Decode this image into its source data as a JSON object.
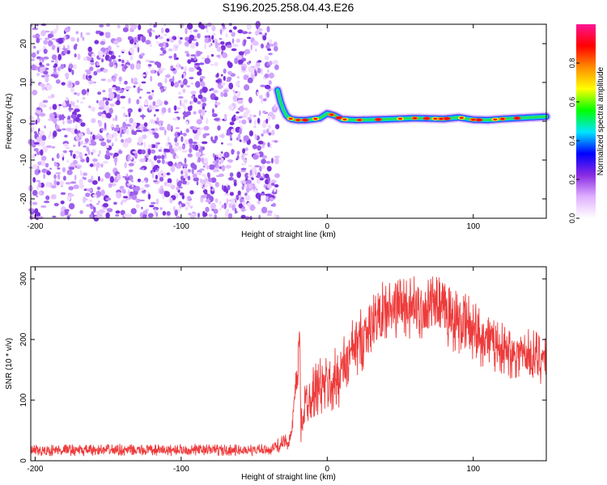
{
  "figure_title": "S196.2025.258.04.43.E26",
  "chart_data": [
    {
      "type": "heatmap",
      "title": "S196.2025.258.04.43.E26",
      "xlabel": "Height of straight line (km)",
      "ylabel": "Frequency (Hz)",
      "xlim": [
        -203,
        150
      ],
      "ylim": [
        -25,
        25
      ],
      "x_ticks": [
        -200,
        -100,
        0,
        100
      ],
      "y_ticks": [
        -20,
        -10,
        0,
        10,
        20
      ],
      "grid": false,
      "colorbar": {
        "label": "Normalized spectral amplitude",
        "range": [
          0,
          1
        ],
        "ticks": [
          "0.0",
          "0.2",
          "0.4",
          "0.6",
          "0.8"
        ],
        "colormap": [
          "#ffffff",
          "#e0b0ff",
          "#8a2be2",
          "#0000ff",
          "#00e5ff",
          "#00ff00",
          "#ffff00",
          "#ff8c00",
          "#ff0000",
          "#ff1493"
        ]
      },
      "regions": [
        {
          "description_x_range_km": [
            -203,
            -34
          ],
          "frequency_range_hz": [
            -25,
            25
          ],
          "amplitude_range": [
            0.0,
            0.2
          ]
        },
        {
          "description_x_range_km": [
            -34,
            150
          ],
          "center_frequency_hz": 0.5,
          "amplitude_range": [
            0.3,
            1.0
          ]
        }
      ],
      "ridge": {
        "x": [
          -34,
          -32,
          -30,
          -28,
          -26,
          -24,
          -20,
          -15,
          -10,
          -5,
          0,
          5,
          10,
          20,
          40,
          60,
          80,
          90,
          100,
          110,
          120,
          140,
          150
        ],
        "y": [
          8,
          5,
          3,
          1.5,
          0.8,
          0.5,
          0.3,
          0.3,
          0.5,
          0.8,
          2,
          1.5,
          0.5,
          0.3,
          0.5,
          0.8,
          0.6,
          1.0,
          0.4,
          0.3,
          0.6,
          1.0,
          1.2
        ]
      }
    },
    {
      "type": "line",
      "xlabel": "Height of straight line (km)",
      "ylabel": "SNR (10 * v/v)",
      "xlim": [
        -203,
        150
      ],
      "ylim": [
        0,
        320
      ],
      "x_ticks": [
        -200,
        -100,
        0,
        100
      ],
      "y_ticks": [
        0,
        100,
        200,
        300
      ],
      "grid": false,
      "color": "#ee3b3b",
      "series": [
        {
          "x": [
            -203,
            -180,
            -160,
            -140,
            -120,
            -100,
            -80,
            -60,
            -40,
            -25,
            -20,
            -19,
            -18,
            -16,
            -14,
            -12,
            -10,
            -5,
            0,
            5,
            10,
            15,
            20,
            25,
            30,
            35,
            40,
            45,
            50,
            55,
            60,
            65,
            70,
            75,
            80,
            85,
            90,
            95,
            100,
            105,
            110,
            115,
            120,
            125,
            130,
            135,
            140,
            145,
            150
          ],
          "y": [
            16,
            18,
            17,
            18,
            17,
            18,
            18,
            17,
            18,
            35,
            150,
            225,
            60,
            80,
            100,
            110,
            115,
            120,
            125,
            130,
            150,
            170,
            190,
            205,
            220,
            235,
            245,
            250,
            255,
            255,
            250,
            250,
            255,
            250,
            245,
            235,
            230,
            225,
            220,
            205,
            200,
            190,
            185,
            180,
            180,
            175,
            175,
            170,
            170
          ],
          "noise_amplitude": [
            10,
            10,
            10,
            10,
            10,
            10,
            10,
            10,
            10,
            15,
            40,
            10,
            40,
            45,
            45,
            45,
            45,
            50,
            50,
            55,
            55,
            55,
            55,
            55,
            55,
            55,
            55,
            55,
            55,
            55,
            55,
            55,
            55,
            55,
            55,
            55,
            55,
            55,
            55,
            50,
            50,
            45,
            45,
            45,
            45,
            45,
            45,
            45,
            45
          ]
        }
      ]
    }
  ]
}
